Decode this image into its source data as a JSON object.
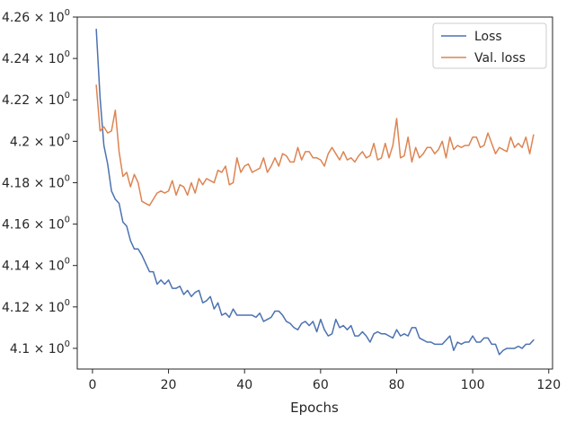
{
  "chart_data": {
    "type": "line",
    "title": "",
    "xlabel": "Epochs",
    "ylabel": "",
    "xlim": [
      -4,
      121
    ],
    "ylim": [
      4.09,
      4.26
    ],
    "x_ticks": [
      0,
      20,
      40,
      60,
      80,
      100,
      120
    ],
    "x_tick_labels": [
      "0",
      "20",
      "40",
      "60",
      "80",
      "100",
      "120"
    ],
    "y_ticks": [
      4.1,
      4.12,
      4.14,
      4.16,
      4.18,
      4.2,
      4.22,
      4.24,
      4.26
    ],
    "y_tick_labels": [
      {
        "mantissa": "4.1",
        "base": "10",
        "exp": "0"
      },
      {
        "mantissa": "4.12",
        "base": "10",
        "exp": "0"
      },
      {
        "mantissa": "4.14",
        "base": "10",
        "exp": "0"
      },
      {
        "mantissa": "4.16",
        "base": "10",
        "exp": "0"
      },
      {
        "mantissa": "4.18",
        "base": "10",
        "exp": "0"
      },
      {
        "mantissa": "4.2",
        "base": "10",
        "exp": "0"
      },
      {
        "mantissa": "4.22",
        "base": "10",
        "exp": "0"
      },
      {
        "mantissa": "4.24",
        "base": "10",
        "exp": "0"
      },
      {
        "mantissa": "4.26",
        "base": "10",
        "exp": "0"
      }
    ],
    "grid": false,
    "legend_position": "top-right",
    "x": [
      1,
      2,
      3,
      4,
      5,
      6,
      7,
      8,
      9,
      10,
      11,
      12,
      13,
      14,
      15,
      16,
      17,
      18,
      19,
      20,
      21,
      22,
      23,
      24,
      25,
      26,
      27,
      28,
      29,
      30,
      31,
      32,
      33,
      34,
      35,
      36,
      37,
      38,
      39,
      40,
      41,
      42,
      43,
      44,
      45,
      46,
      47,
      48,
      49,
      50,
      51,
      52,
      53,
      54,
      55,
      56,
      57,
      58,
      59,
      60,
      61,
      62,
      63,
      64,
      65,
      66,
      67,
      68,
      69,
      70,
      71,
      72,
      73,
      74,
      75,
      76,
      77,
      78,
      79,
      80,
      81,
      82,
      83,
      84,
      85,
      86,
      87,
      88,
      89,
      90,
      91,
      92,
      93,
      94,
      95,
      96,
      97,
      98,
      99,
      100,
      101,
      102,
      103,
      104,
      105,
      106,
      107,
      108,
      109,
      110,
      111,
      112,
      113,
      114,
      115,
      116
    ],
    "series": [
      {
        "name": "Loss",
        "color": "#4c72b0",
        "values": [
          4.254,
          4.221,
          4.198,
          4.189,
          4.176,
          4.172,
          4.17,
          4.161,
          4.159,
          4.152,
          4.148,
          4.148,
          4.145,
          4.141,
          4.137,
          4.137,
          4.131,
          4.133,
          4.131,
          4.133,
          4.129,
          4.129,
          4.13,
          4.126,
          4.128,
          4.125,
          4.127,
          4.128,
          4.122,
          4.123,
          4.125,
          4.119,
          4.122,
          4.116,
          4.117,
          4.115,
          4.119,
          4.116,
          4.116,
          4.116,
          4.116,
          4.116,
          4.115,
          4.117,
          4.113,
          4.114,
          4.115,
          4.118,
          4.118,
          4.116,
          4.113,
          4.112,
          4.11,
          4.109,
          4.112,
          4.113,
          4.111,
          4.113,
          4.108,
          4.114,
          4.109,
          4.106,
          4.107,
          4.114,
          4.11,
          4.111,
          4.109,
          4.111,
          4.106,
          4.106,
          4.108,
          4.106,
          4.103,
          4.107,
          4.108,
          4.107,
          4.107,
          4.106,
          4.105,
          4.109,
          4.106,
          4.107,
          4.106,
          4.11,
          4.11,
          4.105,
          4.104,
          4.103,
          4.103,
          4.102,
          4.102,
          4.102,
          4.104,
          4.106,
          4.099,
          4.103,
          4.102,
          4.103,
          4.103,
          4.106,
          4.103,
          4.103,
          4.105,
          4.105,
          4.102,
          4.102,
          4.097,
          4.099,
          4.1,
          4.1,
          4.1,
          4.101,
          4.1,
          4.102,
          4.102,
          4.104
        ]
      },
      {
        "name": "Val. loss",
        "color": "#dd8452",
        "values": [
          4.227,
          4.205,
          4.207,
          4.204,
          4.205,
          4.215,
          4.195,
          4.183,
          4.185,
          4.178,
          4.184,
          4.18,
          4.171,
          4.17,
          4.169,
          4.172,
          4.175,
          4.176,
          4.175,
          4.176,
          4.181,
          4.174,
          4.179,
          4.178,
          4.174,
          4.18,
          4.175,
          4.182,
          4.179,
          4.182,
          4.181,
          4.18,
          4.186,
          4.185,
          4.188,
          4.179,
          4.18,
          4.192,
          4.185,
          4.188,
          4.189,
          4.185,
          4.186,
          4.187,
          4.192,
          4.185,
          4.188,
          4.192,
          4.188,
          4.194,
          4.193,
          4.19,
          4.19,
          4.197,
          4.191,
          4.195,
          4.195,
          4.192,
          4.192,
          4.191,
          4.188,
          4.194,
          4.197,
          4.194,
          4.191,
          4.195,
          4.191,
          4.192,
          4.19,
          4.193,
          4.195,
          4.192,
          4.193,
          4.199,
          4.191,
          4.192,
          4.199,
          4.192,
          4.198,
          4.211,
          4.192,
          4.193,
          4.202,
          4.19,
          4.197,
          4.192,
          4.194,
          4.197,
          4.197,
          4.194,
          4.196,
          4.2,
          4.192,
          4.202,
          4.196,
          4.198,
          4.197,
          4.198,
          4.198,
          4.202,
          4.202,
          4.197,
          4.198,
          4.204,
          4.199,
          4.194,
          4.197,
          4.196,
          4.195,
          4.202,
          4.197,
          4.199,
          4.197,
          4.202,
          4.194,
          4.203
        ]
      }
    ]
  }
}
